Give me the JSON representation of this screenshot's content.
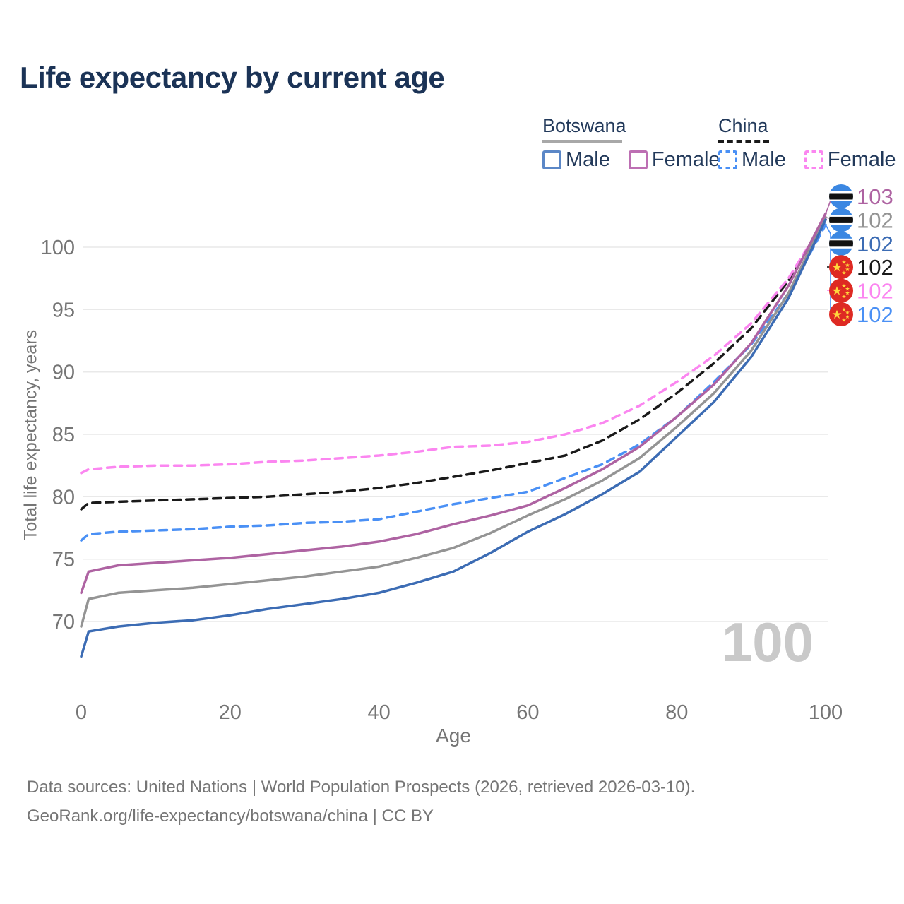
{
  "title": "Life expectancy by current age",
  "legend": {
    "botswana": {
      "label": "Botswana",
      "male_label": "Male",
      "female_label": "Female"
    },
    "china": {
      "label": "China",
      "male_label": "Male",
      "female_label": "Female"
    }
  },
  "colors": {
    "title_text": "#1b3356",
    "legend_text": "#22395a",
    "axis_text": "#757575",
    "footer_text": "#757575",
    "grid": "#e9e9e9",
    "watermark": "#c9c9c9",
    "botswana_male": "#3c6cb4",
    "botswana_female": "#ae63a2",
    "botswana_total": "#949494",
    "china_male": "#4a90f5",
    "china_female": "#fb86f0",
    "china_total": "#1a1a1a",
    "legend_botswana_male": "#5b87c7",
    "legend_botswana_female": "#bd6fb3",
    "legend_underline_botswana": "#a8a8a8",
    "flag_botswana_blue": "#3b87e2",
    "flag_china_red": "#de2a23",
    "flag_china_gold": "#ffd83d"
  },
  "chart_data": {
    "type": "line",
    "title": "Life expectancy by current age",
    "xlabel": "Age",
    "ylabel": "Total life expectancy, years",
    "legend_position": "top-right",
    "grid": "horizontal",
    "xlim": [
      0,
      100
    ],
    "ylim": [
      67,
      103.5
    ],
    "xticks": [
      0,
      20,
      40,
      60,
      80,
      100
    ],
    "yticks": [
      70,
      75,
      80,
      85,
      90,
      95,
      100
    ],
    "ages": [
      0,
      1,
      5,
      10,
      15,
      20,
      25,
      30,
      35,
      40,
      45,
      50,
      55,
      60,
      65,
      70,
      75,
      80,
      85,
      90,
      95,
      100
    ],
    "series": [
      {
        "id": "china-male",
        "name": "China Male",
        "style": "dashed",
        "color_key": "china_male",
        "values": [
          76.5,
          77.0,
          77.2,
          77.3,
          77.4,
          77.6,
          77.7,
          77.9,
          78.0,
          78.2,
          78.8,
          79.4,
          79.9,
          80.4,
          81.5,
          82.6,
          84.2,
          86.4,
          89.2,
          92.2,
          96.3,
          101.8
        ]
      },
      {
        "id": "china-total",
        "name": "China (both sexes)",
        "style": "dashed",
        "color_key": "china_total",
        "values": [
          79.0,
          79.5,
          79.6,
          79.7,
          79.8,
          79.9,
          80.0,
          80.2,
          80.4,
          80.7,
          81.1,
          81.6,
          82.1,
          82.7,
          83.3,
          84.5,
          86.2,
          88.3,
          90.7,
          93.5,
          97.3,
          102.2
        ]
      },
      {
        "id": "china-female",
        "name": "China Female",
        "style": "dashed",
        "color_key": "china_female",
        "values": [
          81.9,
          82.2,
          82.4,
          82.5,
          82.5,
          82.6,
          82.8,
          82.9,
          83.1,
          83.3,
          83.6,
          84.0,
          84.1,
          84.4,
          85.0,
          85.9,
          87.3,
          89.2,
          91.3,
          93.9,
          97.5,
          102.3
        ]
      },
      {
        "id": "botswana-total",
        "name": "Botswana (both sexes)",
        "style": "solid",
        "color_key": "botswana_total",
        "values": [
          69.6,
          71.8,
          72.3,
          72.5,
          72.7,
          73.0,
          73.3,
          73.6,
          74.0,
          74.4,
          75.1,
          75.9,
          77.1,
          78.5,
          79.8,
          81.3,
          83.1,
          85.6,
          88.3,
          91.7,
          96.3,
          102.4
        ]
      },
      {
        "id": "botswana-male",
        "name": "Botswana Male",
        "style": "solid",
        "color_key": "botswana_male",
        "values": [
          67.2,
          69.2,
          69.6,
          69.9,
          70.1,
          70.5,
          71.0,
          71.4,
          71.8,
          72.3,
          73.1,
          74.0,
          75.5,
          77.2,
          78.6,
          80.2,
          82.0,
          84.8,
          87.6,
          91.2,
          95.9,
          102.2
        ]
      },
      {
        "id": "botswana-female",
        "name": "Botswana Female",
        "style": "solid",
        "color_key": "botswana_female",
        "values": [
          72.3,
          74.0,
          74.5,
          74.7,
          74.9,
          75.1,
          75.4,
          75.7,
          76.0,
          76.4,
          77.0,
          77.8,
          78.5,
          79.3,
          80.7,
          82.2,
          84.0,
          86.4,
          89.0,
          92.3,
          96.9,
          102.7
        ]
      }
    ]
  },
  "right_labels": {
    "rows": [
      {
        "value": "103",
        "flag": "botswana",
        "color_key": "botswana_female",
        "series": "Botswana Female"
      },
      {
        "value": "102",
        "flag": "botswana",
        "color_key": "botswana_total",
        "series": "Botswana (both sexes)"
      },
      {
        "value": "102",
        "flag": "botswana",
        "color_key": "botswana_male",
        "series": "Botswana Male"
      },
      {
        "value": "102",
        "flag": "china",
        "color_key": "china_total",
        "series": "China (both sexes)"
      },
      {
        "value": "102",
        "flag": "china",
        "color_key": "china_female",
        "series": "China Female"
      },
      {
        "value": "102",
        "flag": "china",
        "color_key": "china_male",
        "series": "China Male"
      }
    ]
  },
  "watermark": "100",
  "footer": {
    "line1": "Data sources: United Nations | World Population Prospects (2026, retrieved 2026-03-10).",
    "line2": "GeoRank.org/life-expectancy/botswana/china | CC BY"
  }
}
